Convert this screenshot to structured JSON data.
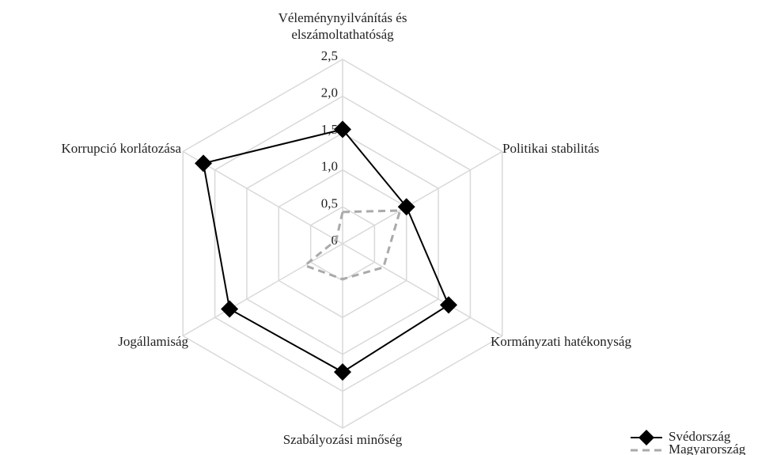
{
  "chart_data": {
    "type": "radar",
    "categories": [
      "Véleménynyilvánítás és elszámoltathatóság",
      "Politikai stabilitás",
      "Kormányzati hatékonyság",
      "Szabályozási minőség",
      "Jogállamiság",
      "Korrupció korlátozása"
    ],
    "rlim": [
      0,
      2.5
    ],
    "rticks": [
      0,
      {
        "value": 0.5,
        "label": "0,5"
      },
      {
        "value": 1.0,
        "label": "1,0"
      },
      {
        "value": 1.5,
        "label": "1,5"
      },
      {
        "value": 2.0,
        "label": "2,0"
      },
      {
        "value": 2.5,
        "label": "2,5"
      }
    ],
    "grid": true,
    "legend": "bottom-right",
    "series": [
      {
        "name": "Svédország",
        "color": "#000000",
        "line_style": "solid",
        "marker": "diamond",
        "values": [
          1.55,
          1.0,
          1.66,
          1.74,
          1.77,
          2.18
        ]
      },
      {
        "name": "Magyarország",
        "color": "#aaaaaa",
        "line_style": "dashed",
        "marker": "none",
        "values": [
          0.43,
          0.9,
          0.64,
          0.48,
          0.59,
          0.1
        ]
      }
    ]
  }
}
